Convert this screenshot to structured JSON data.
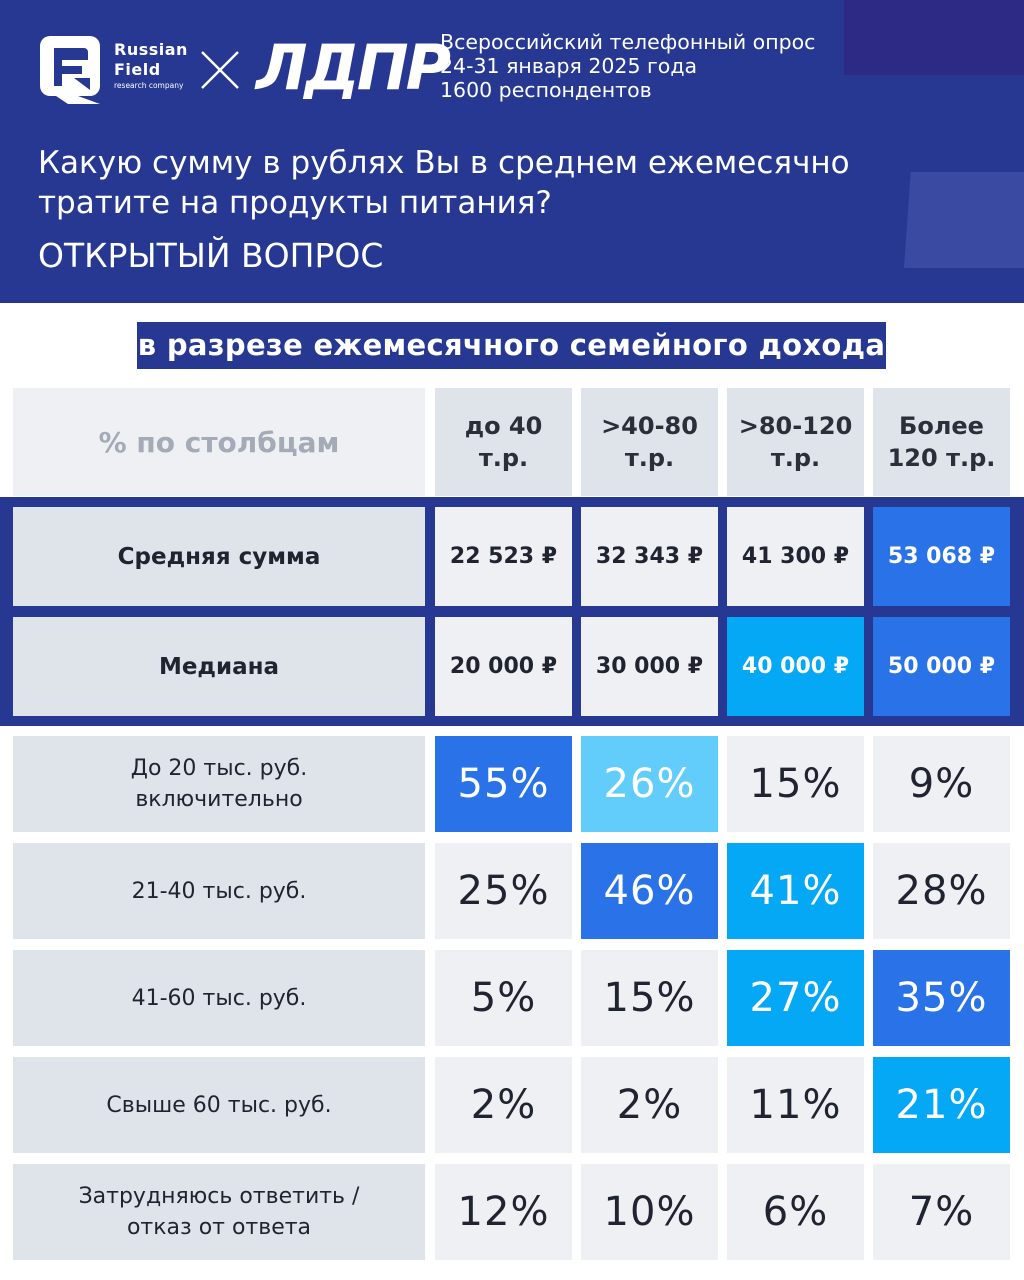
{
  "header": {
    "brand_line1": "Russian",
    "brand_line2": "Field",
    "brand_line3": "research company",
    "partner": "ЛДПР",
    "survey_info": [
      "Всероссийский телефонный опрос",
      "24-31 января 2025 года",
      "1600 респондентов"
    ],
    "question_line1": "Какую сумму в рублях Вы в среднем ежемесячно",
    "question_line2": "тратите на продукты питания?",
    "question_type": "ОТКРЫТЫЙ ВОПРОС"
  },
  "subtitle": "в разрезе ежемесячного семейного дохода",
  "chart_data": {
    "type": "table",
    "corner_label": "% по столбцам",
    "columns": [
      "до 40\nт.р.",
      ">40-80\nт.р.",
      ">80-120\nт.р.",
      "Более\n120 т.р."
    ],
    "stat_rows": [
      {
        "label": "Средняя сумма",
        "values": [
          "22 523 ₽",
          "32 343 ₽",
          "41 300 ₽",
          "53 068 ₽"
        ]
      },
      {
        "label": "Медиана",
        "values": [
          "20 000 ₽",
          "30 000 ₽",
          "40 000 ₽",
          "50 000 ₽"
        ]
      }
    ],
    "distribution_rows": [
      {
        "label": "До 20 тыс. руб.\nвключительно",
        "values": [
          55,
          26,
          15,
          9
        ]
      },
      {
        "label": "21-40 тыс. руб.",
        "values": [
          25,
          46,
          41,
          28
        ]
      },
      {
        "label": "41-60 тыс. руб.",
        "values": [
          5,
          15,
          27,
          35
        ]
      },
      {
        "label": "Свыше 60 тыс. руб.",
        "values": [
          2,
          2,
          11,
          21
        ]
      },
      {
        "label": "Затрудняюсь ответить /\nотказ от ответа",
        "values": [
          12,
          10,
          6,
          7
        ]
      }
    ],
    "highlight_stat": [
      [
        null,
        null,
        null,
        "dark"
      ],
      [
        null,
        null,
        "cyan",
        "dark"
      ]
    ],
    "highlight_dist": [
      [
        "dark",
        "light",
        null,
        null
      ],
      [
        null,
        "dark",
        "cyan",
        null
      ],
      [
        null,
        null,
        "cyan",
        "dark"
      ],
      [
        null,
        null,
        null,
        "cyan"
      ],
      [
        null,
        null,
        null,
        null
      ]
    ],
    "colors": {
      "header_bg": "#263891",
      "dark": "#2a72e8",
      "cyan": "#04a8f4",
      "light": "#62cdfb",
      "cell_plain": "#eef0f4",
      "label_bg": "#dfe3ea"
    }
  }
}
